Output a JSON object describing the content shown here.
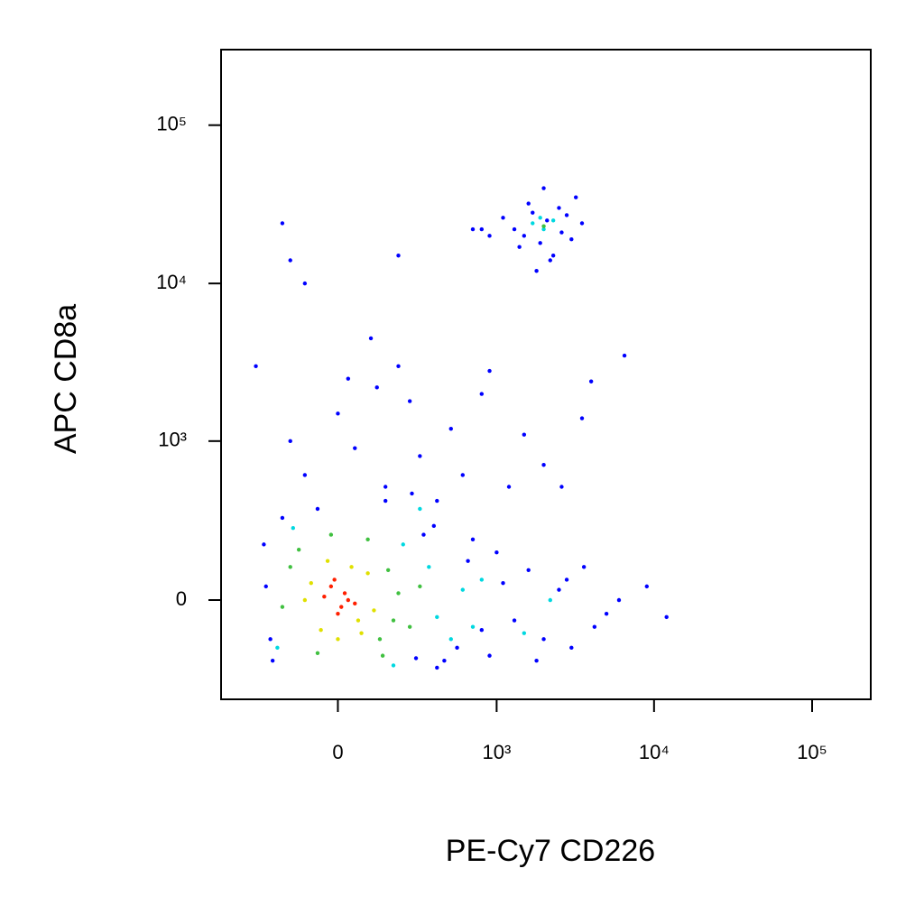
{
  "chart_data": {
    "type": "scatter",
    "x_label": "PE-Cy7 CD226",
    "y_label": "APC CD8a",
    "xscale": "biexponential",
    "yscale": "biexponential",
    "xlim": [
      -530,
      235000
    ],
    "ylim": [
      -400,
      300000
    ],
    "xticks": [
      0,
      {
        "value": 1000,
        "label": "10³"
      },
      {
        "value": 10000,
        "label": "10⁴"
      },
      {
        "value": 100000,
        "label": "10⁵"
      }
    ],
    "yticks": [
      0,
      {
        "value": 1000,
        "label": "10³"
      },
      {
        "value": 10000,
        "label": "10⁴"
      },
      {
        "value": 100000,
        "label": "10⁵"
      }
    ],
    "series": [
      {
        "color": "#0000ff",
        "x": [
          -250,
          -220,
          280,
          320,
          -180,
          450,
          -260,
          150,
          550,
          650,
          800,
          400,
          380,
          900,
          1100,
          1300,
          1600,
          2000,
          2500,
          3000,
          3600,
          4200,
          5000,
          6000,
          9000,
          12000,
          -230,
          260,
          700,
          1000,
          1800,
          2800,
          -100,
          50,
          0,
          120,
          300,
          500,
          200,
          -150,
          800,
          1200,
          2000,
          3500,
          4000,
          6500,
          100,
          -60,
          250,
          600,
          150,
          1500,
          900,
          30,
          400,
          2600,
          1500,
          1700,
          2100,
          2500,
          1300,
          1900,
          2800,
          3200,
          1100,
          2300,
          1600,
          2000,
          3500,
          1400,
          2600,
          900,
          700,
          1800,
          2200,
          3000,
          -180,
          -150,
          200,
          800,
          -300,
          -100
        ],
        "y": [
          40,
          -200,
          -190,
          220,
          300,
          -200,
          180,
          400,
          -150,
          120,
          -90,
          -230,
          260,
          -180,
          50,
          -60,
          90,
          -120,
          30,
          -150,
          100,
          -80,
          -40,
          0,
          40,
          -50,
          -120,
          450,
          200,
          150,
          -200,
          60,
          600,
          900,
          1500,
          2200,
          800,
          1200,
          3000,
          1000,
          2000,
          500,
          700,
          1400,
          2400,
          3500,
          4500,
          350,
          1800,
          600,
          500,
          1100,
          2800,
          2500,
          400,
          500,
          20000,
          28000,
          25000,
          30000,
          22000,
          18000,
          27000,
          35000,
          26000,
          15000,
          32000,
          40000,
          24000,
          17000,
          21000,
          20000,
          22000,
          12000,
          14000,
          19000,
          24000,
          14000,
          15000,
          22000,
          3000,
          10000
        ]
      },
      {
        "color": "#00d8e0",
        "x": [
          -200,
          220,
          400,
          600,
          350,
          -140,
          500,
          180,
          700,
          1500,
          2200,
          300,
          800,
          1700,
          2000,
          2300,
          1900
        ],
        "y": [
          -150,
          180,
          -50,
          30,
          100,
          250,
          -120,
          -220,
          -80,
          -100,
          0,
          350,
          60,
          24000,
          22000,
          25000,
          26000
        ]
      },
      {
        "color": "#40c040",
        "x": [
          -150,
          130,
          -120,
          180,
          160,
          -60,
          200,
          -180,
          90,
          250,
          300,
          -20,
          140,
          2000
        ],
        "y": [
          100,
          -120,
          160,
          -60,
          90,
          -170,
          20,
          -20,
          200,
          -80,
          40,
          220,
          -180,
          23000
        ]
      },
      {
        "color": "#e0e000",
        "x": [
          -80,
          60,
          -50,
          90,
          -100,
          40,
          110,
          -30,
          70,
          0
        ],
        "y": [
          50,
          -60,
          -90,
          80,
          0,
          100,
          -30,
          120,
          -100,
          -120
        ]
      },
      {
        "color": "#ff2000",
        "x": [
          -40,
          10,
          -20,
          30,
          0,
          20,
          -10,
          50
        ],
        "y": [
          10,
          -20,
          40,
          0,
          -40,
          20,
          60,
          -10
        ]
      }
    ]
  }
}
